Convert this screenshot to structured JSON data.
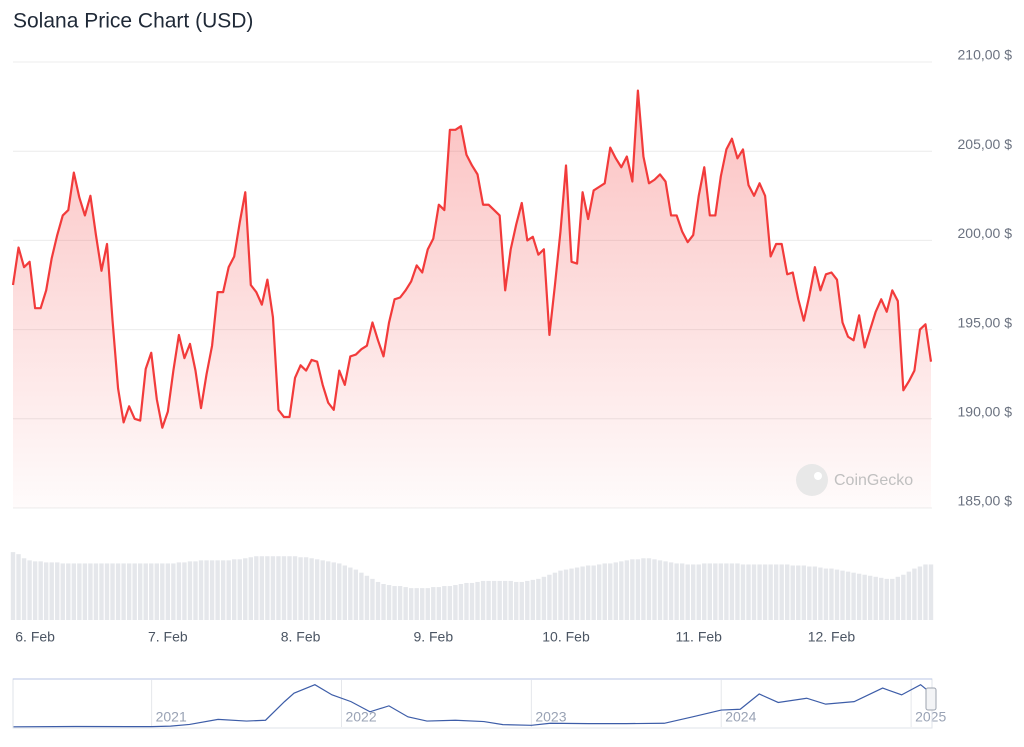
{
  "chart_data": [
    {
      "type": "area",
      "title": "Solana Price Chart (USD)",
      "watermark": "CoinGecko",
      "categories": [
        null,
        null,
        null,
        null,
        "6. Feb",
        null,
        null,
        null,
        null,
        null,
        null,
        null,
        null,
        null,
        null,
        null,
        null,
        null,
        null,
        null,
        null,
        null,
        null,
        null,
        null,
        null,
        null,
        null,
        "7. Feb",
        null,
        null,
        null,
        null,
        null,
        null,
        null,
        null,
        null,
        null,
        null,
        null,
        null,
        null,
        null,
        null,
        null,
        null,
        null,
        null,
        null,
        null,
        null,
        "8. Feb",
        null,
        null,
        null,
        null,
        null,
        null,
        null,
        null,
        null,
        null,
        null,
        null,
        null,
        null,
        null,
        null,
        null,
        null,
        null,
        null,
        null,
        null,
        null,
        "9. Feb",
        null,
        null,
        null,
        null,
        null,
        null,
        null,
        null,
        null,
        null,
        null,
        null,
        null,
        null,
        null,
        null,
        null,
        null,
        null,
        null,
        null,
        null,
        null,
        "10. Feb",
        null,
        null,
        null,
        null,
        null,
        null,
        null,
        null,
        null,
        null,
        null,
        null,
        null,
        null,
        null,
        null,
        null,
        null,
        null,
        null,
        null,
        null,
        null,
        "11. Feb",
        null,
        null,
        null,
        null,
        null,
        null,
        null,
        null,
        null,
        null,
        null,
        null,
        null,
        null,
        null,
        null,
        null,
        null,
        null,
        null,
        null,
        null,
        null,
        "12. Feb",
        null,
        null,
        null,
        null,
        null,
        null,
        null,
        null,
        null,
        null,
        null,
        null,
        null,
        null,
        null,
        null,
        null,
        null
      ],
      "series": [
        {
          "color": "#f23b3b",
          "values": [
            197.5,
            199.6,
            198.5,
            198.8,
            196.2,
            196.2,
            197.2,
            199.0,
            200.3,
            201.4,
            201.7,
            203.8,
            202.4,
            201.4,
            202.5,
            200.3,
            198.3,
            199.8,
            195.5,
            191.7,
            189.8,
            190.7,
            190.0,
            189.9,
            192.8,
            193.7,
            191.1,
            189.5,
            190.4,
            192.7,
            194.7,
            193.4,
            194.2,
            192.7,
            190.6,
            192.5,
            194.1,
            197.1,
            197.1,
            198.5,
            199.1,
            201.0,
            202.7,
            197.5,
            197.1,
            196.4,
            197.8,
            195.7,
            190.5,
            190.1,
            190.1,
            192.3,
            193.0,
            192.7,
            193.3,
            193.2,
            191.9,
            190.9,
            190.5,
            192.7,
            191.9,
            193.5,
            193.6,
            193.9,
            194.1,
            195.4,
            194.4,
            193.5,
            195.4,
            196.7,
            196.8,
            197.2,
            197.7,
            198.6,
            198.2,
            199.5,
            200.1,
            202.0,
            201.7,
            206.2,
            206.2,
            206.4,
            204.8,
            204.2,
            203.7,
            202.0,
            202.0,
            201.7,
            201.4,
            197.2,
            199.5,
            200.9,
            202.1,
            200.0,
            200.2,
            199.2,
            199.5,
            194.7,
            197.5,
            200.5,
            204.2,
            198.8,
            198.7,
            202.7,
            201.2,
            202.8,
            203.0,
            203.2,
            205.2,
            204.6,
            204.1,
            204.7,
            203.3,
            208.4,
            204.7,
            203.2,
            203.4,
            203.7,
            203.3,
            201.4,
            201.4,
            200.5,
            199.9,
            200.3,
            202.5,
            204.1,
            201.4,
            201.4,
            203.6,
            205.1,
            205.7,
            204.6,
            205.1,
            203.1,
            202.5,
            203.2,
            202.5,
            199.1,
            199.8,
            199.8,
            198.1,
            198.2,
            196.7,
            195.5,
            196.9,
            198.5,
            197.2,
            198.1,
            198.2,
            197.8,
            195.4,
            194.6,
            194.4,
            195.8,
            194.0,
            195.0,
            196.0,
            196.7,
            196.0,
            197.2,
            196.6,
            191.6,
            192.1,
            192.7,
            195.0,
            195.3,
            193.2
          ]
        }
      ],
      "ylim": [
        185,
        210
      ],
      "yticks": [
        {
          "value": 185,
          "label": "185,00 $"
        },
        {
          "value": 190,
          "label": "190,00 $"
        },
        {
          "value": 195,
          "label": "195,00 $"
        },
        {
          "value": 200,
          "label": "200,00 $"
        },
        {
          "value": 205,
          "label": "205,00 $"
        },
        {
          "value": 210,
          "label": "210,00 $"
        }
      ],
      "grid": true,
      "volume": [
        66,
        64,
        60,
        58,
        57,
        57,
        56,
        56,
        56,
        55,
        55,
        55,
        55,
        55,
        55,
        55,
        55,
        55,
        55,
        55,
        55,
        55,
        55,
        55,
        55,
        55,
        55,
        55,
        55,
        55,
        56,
        56,
        57,
        57,
        58,
        58,
        58,
        58,
        58,
        58,
        59,
        59,
        60,
        61,
        62,
        62,
        62,
        62,
        62,
        62,
        62,
        62,
        61,
        61,
        60,
        59,
        58,
        57,
        56,
        55,
        53,
        51,
        49,
        46,
        43,
        40,
        37,
        35,
        34,
        33,
        33,
        32,
        31,
        31,
        31,
        31,
        32,
        32,
        33,
        33,
        34,
        35,
        36,
        36,
        37,
        38,
        38,
        38,
        38,
        38,
        38,
        37,
        37,
        38,
        39,
        40,
        42,
        44,
        46,
        48,
        49,
        50,
        51,
        52,
        53,
        53,
        54,
        55,
        55,
        56,
        57,
        58,
        59,
        59,
        60,
        60,
        59,
        58,
        57,
        56,
        55,
        55,
        54,
        54,
        54,
        55,
        55,
        55,
        55,
        55,
        55,
        55,
        54,
        54,
        54,
        54,
        54,
        54,
        54,
        54,
        54,
        53,
        53,
        53,
        52,
        52,
        51,
        50,
        50,
        49,
        48,
        47,
        46,
        45,
        44,
        43,
        42,
        41,
        40,
        40,
        42,
        44,
        47,
        50,
        52,
        54,
        54
      ],
      "volume_ylim": [
        0,
        70
      ],
      "volume_color": "#e5e7eb"
    },
    {
      "type": "line",
      "x": [
        2020.27,
        2020.6,
        2020.9,
        2021.0,
        2021.1,
        2021.2,
        2021.35,
        2021.5,
        2021.6,
        2021.7,
        2021.75,
        2021.86,
        2021.95,
        2022.05,
        2022.15,
        2022.25,
        2022.35,
        2022.45,
        2022.6,
        2022.75,
        2022.85,
        2023.0,
        2023.1,
        2023.3,
        2023.5,
        2023.7,
        2023.85,
        2024.0,
        2024.1,
        2024.2,
        2024.3,
        2024.45,
        2024.55,
        2024.7,
        2024.85,
        2024.95,
        2025.05,
        2025.11
      ],
      "series": [
        {
          "color": "#3d5da8",
          "values": [
            1,
            3,
            2,
            2,
            5,
            15,
            45,
            35,
            40,
            150,
            200,
            250,
            190,
            150,
            90,
            125,
            60,
            35,
            40,
            32,
            14,
            10,
            22,
            20,
            20,
            22,
            60,
            100,
            105,
            195,
            145,
            170,
            135,
            150,
            230,
            190,
            250,
            195
          ]
        }
      ],
      "xlim": [
        2020.27,
        2025.11
      ],
      "ylim": [
        0,
        260
      ],
      "xticks": [
        2021,
        2022,
        2023,
        2024,
        2025
      ]
    }
  ]
}
